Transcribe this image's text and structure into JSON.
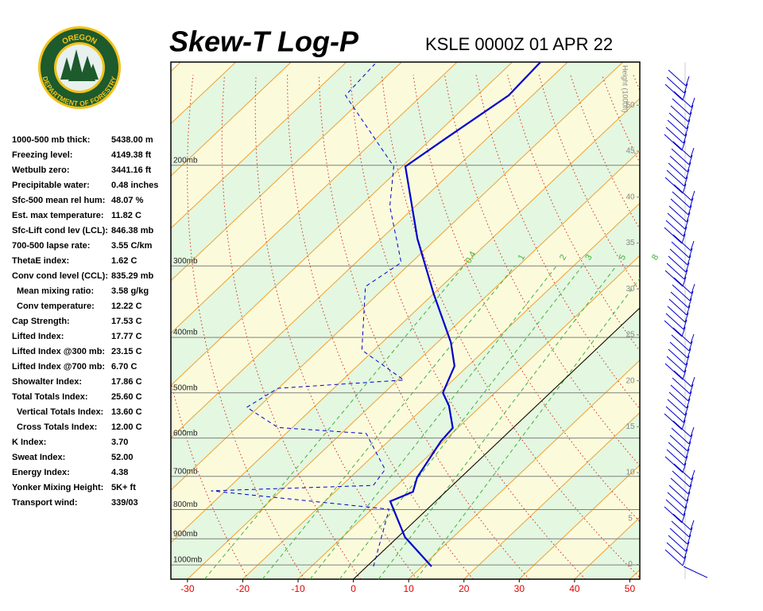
{
  "logo": {
    "top": "OREGON",
    "bottom": "DEPARTMENT OF FORESTRY"
  },
  "indices": [
    {
      "label": "1000-500 mb thick:",
      "value": "5438.00 m"
    },
    {
      "label": "Freezing level:",
      "value": "4149.38 ft"
    },
    {
      "label": "Wetbulb zero:",
      "value": "3441.16 ft"
    },
    {
      "label": "Precipitable water:",
      "value": "0.48 inches"
    },
    {
      "label": "Sfc-500 mean rel hum:",
      "value": "48.07 %"
    },
    {
      "label": "Est. max temperature:",
      "value": "11.82 C"
    },
    {
      "label": "Sfc-Lift cond lev (LCL):",
      "value": "846.38 mb"
    },
    {
      "label": "700-500 lapse rate:",
      "value": "3.55 C/km"
    },
    {
      "label": "ThetaE index:",
      "value": "1.62 C"
    },
    {
      "label": "Conv cond level (CCL):",
      "value": "835.29 mb"
    },
    {
      "label": "Mean mixing ratio:",
      "value": "3.58 g/kg"
    },
    {
      "label": "Conv temperature:",
      "value": "12.22 C"
    },
    {
      "label": "Cap Strength:",
      "value": "17.53 C"
    },
    {
      "label": "Lifted Index:",
      "value": "17.77 C"
    },
    {
      "label": "Lifted Index @300 mb:",
      "value": "23.15 C"
    },
    {
      "label": "Lifted Index @700 mb:",
      "value": "6.70 C"
    },
    {
      "label": "Showalter Index:",
      "value": "17.86 C"
    },
    {
      "label": "Total Totals Index:",
      "value": "25.60 C"
    },
    {
      "label": "Vertical Totals Index:",
      "value": "13.60 C"
    },
    {
      "label": "Cross Totals Index:",
      "value": "12.00 C"
    },
    {
      "label": "K Index:",
      "value": "3.70"
    },
    {
      "label": "Sweat Index:",
      "value": "52.00"
    },
    {
      "label": "Energy Index:",
      "value": "4.38"
    },
    {
      "label": "Yonker Mixing Height:",
      "value": "5K+ ft"
    },
    {
      "label": "Transport wind:",
      "value": "339/03"
    }
  ],
  "chart_data": {
    "type": "skewt",
    "title": "Skew-T Log-P",
    "subtitle": "KSLE 0000Z 01 APR 22",
    "xlim": [
      -33,
      51.8
    ],
    "xticks": [
      -30,
      -20,
      -10,
      0,
      10,
      20,
      30,
      40,
      50
    ],
    "ylim": [
      1059,
      132
    ],
    "log_y": true,
    "yticks": [
      {
        "value": 1000,
        "label": "1000mb"
      },
      {
        "value": 900,
        "label": "900mb"
      },
      {
        "value": 800,
        "label": "800mb"
      },
      {
        "value": 700,
        "label": "700mb"
      },
      {
        "value": 600,
        "label": "600mb"
      },
      {
        "value": 500,
        "label": "500mb"
      },
      {
        "value": 400,
        "label": "400mb"
      },
      {
        "value": 300,
        "label": "300mb"
      },
      {
        "value": 200,
        "label": "200mb"
      }
    ],
    "y2label": "Height (1000ft)",
    "y2lim": [
      -1.6,
      54.7
    ],
    "y2ticks": [
      0,
      5,
      10,
      15,
      20,
      25,
      30,
      35,
      40,
      45,
      50
    ],
    "mixing_ratios": [
      0.4,
      1,
      2,
      3,
      5,
      8
    ],
    "series": [
      {
        "color": "#0000cc",
        "dashed": false,
        "x": [
          11.7,
          1.3,
          -8.2,
          -5.9,
          -7.9,
          -10.5,
          -10.9,
          -15.8,
          -19.4,
          -22.4,
          -27.6,
          -39.9,
          -53.4,
          -69.4,
          -67.5,
          -64.3,
          -64.9
        ],
        "y": [
          1006,
          894,
          774,
          745,
          703,
          608,
          576,
          527,
          500,
          449,
          408,
          336,
          269,
          201,
          180,
          151,
          132
        ]
      },
      {
        "color": "#0000cc",
        "dashed": true,
        "x": [
          1.2,
          -6.9,
          -42.6,
          -14.3,
          -15.2,
          -25.5,
          -42.6,
          -52.1,
          -50.1,
          -28.9,
          -42.2,
          -53.7,
          -51.8,
          -64.6,
          -71.5,
          -93.8,
          -94.5
        ],
        "y": [
          1006,
          799,
          742,
          726,
          681,
          589,
          575,
          530,
          491,
          475,
          421,
          326,
          296,
          236,
          201,
          151,
          133
        ]
      }
    ]
  }
}
